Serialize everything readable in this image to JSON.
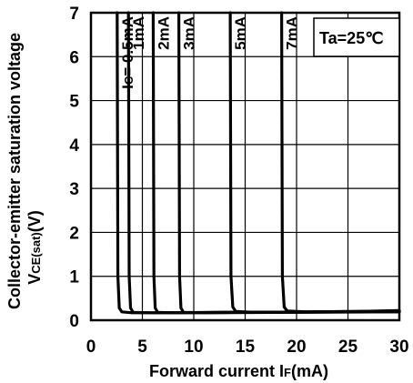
{
  "chart_data": {
    "type": "line",
    "xlabel": {
      "main": "Forward current I",
      "sub": "F",
      "unit": "(mA)"
    },
    "ylabel": {
      "line1": "Collector-emitter saturation voltage",
      "line2_main": "V",
      "line2_sub": "CE(sat)",
      "line2_unit": "(V)"
    },
    "xlim": [
      0,
      30
    ],
    "ylim": [
      0,
      7
    ],
    "xticks": [
      "0",
      "5",
      "10",
      "15",
      "20",
      "25",
      "30"
    ],
    "yticks": [
      "0",
      "1",
      "2",
      "3",
      "4",
      "5",
      "6",
      "7"
    ],
    "grid": true,
    "annotation": "Ta=25℃",
    "series": [
      {
        "name": "Ic= 0.5mA",
        "label_main": "I",
        "label_sub": "C",
        "label_rest": "= 0.5mA",
        "x": [
          2.55,
          2.62,
          2.75,
          3.0,
          4.0,
          8.0,
          15.0,
          30.0
        ],
        "y": [
          7.0,
          1.0,
          0.28,
          0.19,
          0.17,
          0.17,
          0.18,
          0.19
        ]
      },
      {
        "name": "1mA",
        "x": [
          3.65,
          3.72,
          3.85,
          4.1,
          6.0,
          12.0,
          30.0
        ],
        "y": [
          7.0,
          1.0,
          0.28,
          0.18,
          0.17,
          0.18,
          0.19
        ]
      },
      {
        "name": "2mA",
        "x": [
          6.05,
          6.12,
          6.25,
          6.5,
          8.0,
          15.0,
          30.0
        ],
        "y": [
          7.0,
          1.0,
          0.28,
          0.18,
          0.17,
          0.18,
          0.2
        ]
      },
      {
        "name": "3mA",
        "x": [
          8.55,
          8.62,
          8.75,
          9.0,
          11.0,
          20.0,
          30.0
        ],
        "y": [
          7.0,
          1.0,
          0.28,
          0.18,
          0.17,
          0.18,
          0.2
        ]
      },
      {
        "name": "5mA",
        "x": [
          13.55,
          13.62,
          13.8,
          14.1,
          16.0,
          22.0,
          30.0
        ],
        "y": [
          7.0,
          1.0,
          0.3,
          0.2,
          0.18,
          0.19,
          0.21
        ]
      },
      {
        "name": "7mA",
        "x": [
          18.55,
          18.62,
          18.8,
          19.1,
          21.0,
          26.0,
          30.0
        ],
        "y": [
          7.0,
          1.0,
          0.3,
          0.21,
          0.19,
          0.2,
          0.22
        ]
      }
    ]
  }
}
